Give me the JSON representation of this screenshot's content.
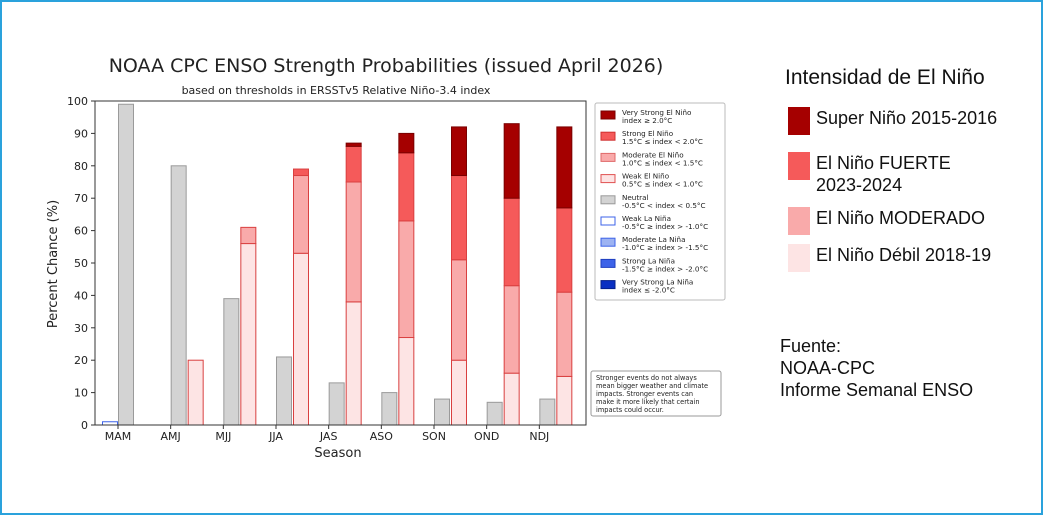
{
  "chart_data": {
    "type": "bar",
    "title": "NOAA CPC ENSO Strength Probabilities (issued April 2026)",
    "subtitle": "based on thresholds in ERSSTv5 Relative Niño-3.4 index",
    "xlabel": "Season",
    "ylabel": "Percent Chance (%)",
    "ylim": [
      0,
      100
    ],
    "yticks": [
      0,
      10,
      20,
      30,
      40,
      50,
      60,
      70,
      80,
      90,
      100
    ],
    "categories": [
      "MAM",
      "AMJ",
      "MJJ",
      "JJA",
      "JAS",
      "ASO",
      "SON",
      "OND",
      "NDJ"
    ],
    "grid": false,
    "legend_position": "right",
    "lanina_series": [
      {
        "name": "Very Strong La Niña",
        "values": [
          0,
          0,
          0,
          0,
          0,
          0,
          0,
          0,
          0
        ],
        "color": "#0a2fc2"
      },
      {
        "name": "Strong La Niña",
        "values": [
          0,
          0,
          0,
          0,
          0,
          0,
          0,
          0,
          0
        ],
        "color": "#3d63e8"
      },
      {
        "name": "Moderate La Niña",
        "values": [
          0,
          0,
          0,
          0,
          0,
          0,
          0,
          0,
          0
        ],
        "color": "#9db3f2"
      },
      {
        "name": "Weak La Niña",
        "values": [
          1,
          0,
          0,
          0,
          0,
          0,
          0,
          0,
          0
        ],
        "color": "#ffffff"
      }
    ],
    "neutral": {
      "name": "Neutral",
      "values": [
        99,
        80,
        39,
        21,
        13,
        10,
        8,
        7,
        8
      ],
      "color": "#d3d3d3"
    },
    "elnino_series": [
      {
        "name": "Weak El Niño",
        "values": [
          0,
          20,
          56,
          53,
          38,
          27,
          20,
          16,
          15
        ],
        "color": "#fde4e4"
      },
      {
        "name": "Moderate El Niño",
        "values": [
          0,
          0,
          5,
          24,
          37,
          36,
          31,
          27,
          26
        ],
        "color": "#f9aaaa"
      },
      {
        "name": "Strong El Niño",
        "values": [
          0,
          0,
          0,
          2,
          11,
          21,
          26,
          27,
          26
        ],
        "color": "#f55a5a"
      },
      {
        "name": "Very Strong El Niño",
        "values": [
          0,
          0,
          0,
          0,
          1,
          6,
          15,
          23,
          25
        ],
        "color": "#a50000"
      }
    ],
    "legend": [
      {
        "line1": "Very Strong El Niño",
        "line2": "index ≥ 2.0°C",
        "color": "#a50000",
        "edge": "#7a0000"
      },
      {
        "line1": "Strong El Niño",
        "line2": "1.5°C ≤ index < 2.0°C",
        "color": "#f55a5a",
        "edge": "#d03030"
      },
      {
        "line1": "Moderate El Niño",
        "line2": "1.0°C ≤ index < 1.5°C",
        "color": "#f9aaaa",
        "edge": "#e06a6a"
      },
      {
        "line1": "Weak El Niño",
        "line2": "0.5°C ≤ index < 1.0°C",
        "color": "#fde4e4",
        "edge": "#e05050"
      },
      {
        "line1": "Neutral",
        "line2": "-0.5°C < index < 0.5°C",
        "color": "#d3d3d3",
        "edge": "#999999"
      },
      {
        "line1": "Weak La Niña",
        "line2": "-0.5°C ≥ index > -1.0°C",
        "color": "#ffffff",
        "edge": "#3d63e8"
      },
      {
        "line1": "Moderate La Niña",
        "line2": "-1.0°C ≥ index > -1.5°C",
        "color": "#9db3f2",
        "edge": "#3d63e8"
      },
      {
        "line1": "Strong La Niña",
        "line2": "-1.5°C ≥ index > -2.0°C",
        "color": "#3d63e8",
        "edge": "#1f3fbf"
      },
      {
        "line1": "Very Strong La Niña",
        "line2": "index ≤ -2.0°C",
        "color": "#0a2fc2",
        "edge": "#06208a"
      }
    ],
    "note": [
      "Stronger events do not always",
      "mean bigger weather and climate",
      "impacts. Stronger events can",
      "make it more likely that certain",
      "impacts could occur."
    ]
  },
  "side_panel": {
    "title": "Intensidad de El Niño",
    "items": [
      {
        "label": "Super Niño  2015-2016",
        "color": "#a50000"
      },
      {
        "label": "El Niño FUERTE\n2023-2024",
        "color": "#f55a5a"
      },
      {
        "label": "El Niño MODERADO",
        "color": "#f9aaaa"
      },
      {
        "label": "El Niño Débil 2018-19",
        "color": "#fde4e4"
      }
    ]
  },
  "source": {
    "line1": "Fuente:",
    "line2": "NOAA-CPC",
    "line3": "Informe Semanal ENSO"
  }
}
